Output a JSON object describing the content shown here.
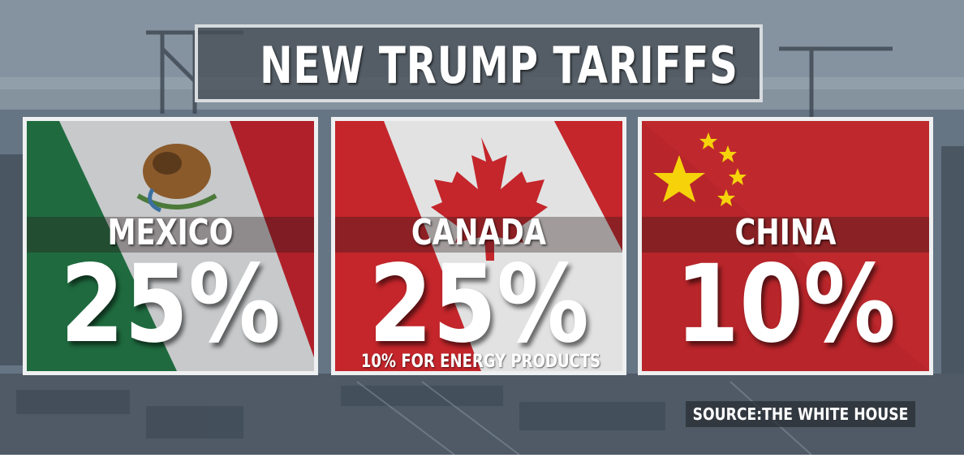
{
  "headline": "NEW TRUMP TARIFFS",
  "panels": [
    {
      "country": "MEXICO",
      "rate": "25%",
      "note": "",
      "flag_icon": "mexico-flag-icon",
      "colors": {
        "green": "#1f6b3f",
        "white": "#d9d9d9",
        "red": "#b0202a"
      }
    },
    {
      "country": "CANADA",
      "rate": "25%",
      "note": "10% FOR ENERGY PRODUCTS",
      "flag_icon": "canada-flag-icon",
      "colors": {
        "red": "#c4262b",
        "white": "#e2e2e2"
      }
    },
    {
      "country": "CHINA",
      "rate": "10%",
      "note": "",
      "flag_icon": "china-flag-icon",
      "colors": {
        "red": "#b8252a",
        "star": "#f5d20a"
      }
    }
  ],
  "source": "SOURCE:THE WHITE HOUSE"
}
